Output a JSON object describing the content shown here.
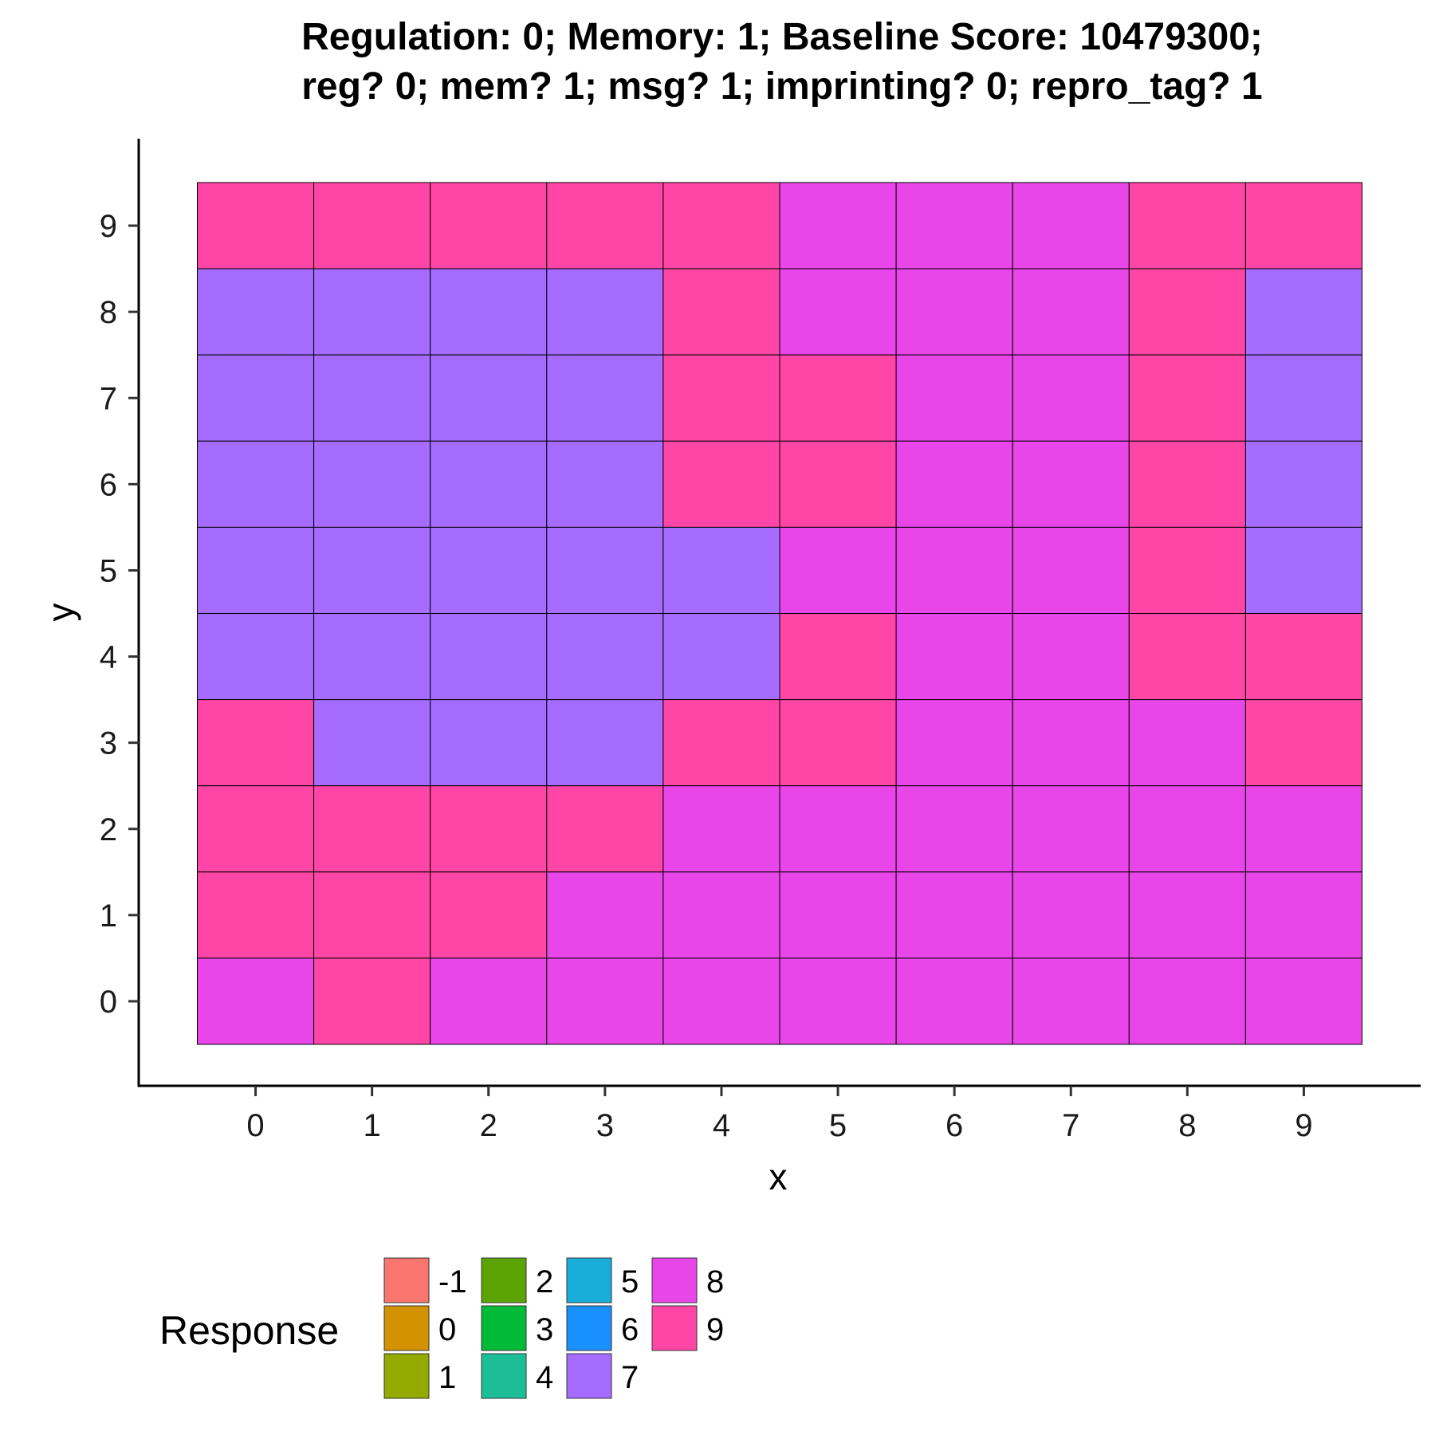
{
  "chart_data": {
    "type": "heatmap",
    "title_lines": [
      "Regulation: 0; Memory: 1; Baseline Score: 10479300;",
      "reg? 0; mem? 1; msg? 1; imprinting? 0; repro_tag? 1"
    ],
    "xlabel": "x",
    "ylabel": "y",
    "x": [
      0,
      1,
      2,
      3,
      4,
      5,
      6,
      7,
      8,
      9
    ],
    "y": [
      0,
      1,
      2,
      3,
      4,
      5,
      6,
      7,
      8,
      9
    ],
    "xlim": [
      -1,
      10
    ],
    "ylim": [
      -1,
      10
    ],
    "x_ticks": [
      "0",
      "1",
      "2",
      "3",
      "4",
      "5",
      "6",
      "7",
      "8",
      "9"
    ],
    "y_ticks": [
      "0",
      "1",
      "2",
      "3",
      "4",
      "5",
      "6",
      "7",
      "8",
      "9"
    ],
    "grid": false,
    "legend_placement": "bottom",
    "legend": {
      "title": "Response",
      "levels": [
        "-1",
        "0",
        "1",
        "2",
        "3",
        "4",
        "5",
        "6",
        "7",
        "8",
        "9"
      ],
      "colors": [
        "#F8766D",
        "#D39200",
        "#93AA00",
        "#00BA38",
        "#00C19F",
        "#00B9E3",
        "#00B9E3",
        "#619CFF",
        "#B983FF",
        "#F564E3",
        "#FF61C3"
      ]
    },
    "values_by_row_y9_to_y0": [
      [
        9,
        9,
        9,
        9,
        9,
        8,
        8,
        8,
        9,
        9
      ],
      [
        7,
        7,
        7,
        7,
        9,
        8,
        8,
        8,
        9,
        7
      ],
      [
        7,
        7,
        7,
        7,
        9,
        9,
        8,
        8,
        9,
        7
      ],
      [
        7,
        7,
        7,
        7,
        9,
        9,
        8,
        8,
        9,
        7
      ],
      [
        7,
        7,
        7,
        7,
        7,
        8,
        8,
        8,
        9,
        7
      ],
      [
        7,
        7,
        7,
        7,
        7,
        9,
        8,
        8,
        9,
        9
      ],
      [
        9,
        7,
        7,
        7,
        9,
        9,
        8,
        8,
        8,
        9
      ],
      [
        9,
        9,
        9,
        9,
        8,
        8,
        8,
        8,
        8,
        8
      ],
      [
        9,
        9,
        9,
        8,
        8,
        8,
        8,
        8,
        8,
        8
      ],
      [
        8,
        9,
        8,
        8,
        8,
        8,
        8,
        8,
        8,
        8
      ]
    ]
  },
  "palette": {
    "-1": "#F8766D",
    "0": "#D39200",
    "1": "#93AA00",
    "2": "#5BA300",
    "3": "#00BA38",
    "4": "#1DBE97",
    "5": "#19AED9",
    "6": "#1890FF",
    "7": "#A66BFF",
    "8": "#E846E9",
    "9": "#FF46A6"
  }
}
